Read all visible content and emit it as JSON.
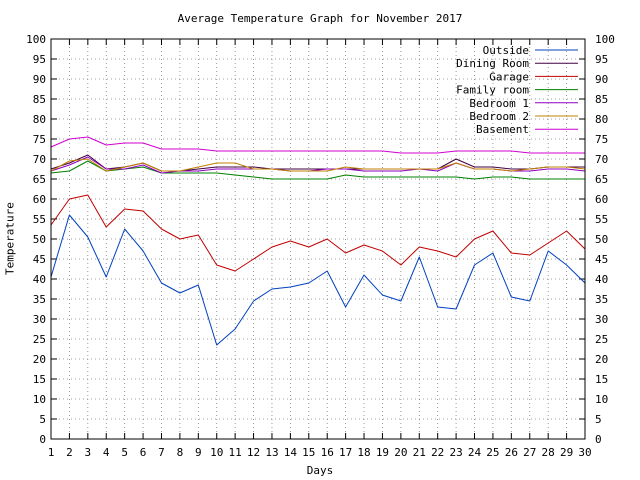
{
  "chart_data": {
    "type": "line",
    "title": "Average Temperature Graph for November 2017",
    "xlabel": "Days",
    "ylabel": "Temperature",
    "xlim": [
      1,
      30
    ],
    "ylim": [
      0,
      100
    ],
    "x": [
      1,
      2,
      3,
      4,
      5,
      6,
      7,
      8,
      9,
      10,
      11,
      12,
      13,
      14,
      15,
      16,
      17,
      18,
      19,
      20,
      21,
      22,
      23,
      24,
      25,
      26,
      27,
      28,
      29,
      30
    ],
    "x_ticks": [
      "1",
      "2",
      "3",
      "4",
      "5",
      "6",
      "7",
      "8",
      "9",
      "10",
      "11",
      "12",
      "13",
      "14",
      "15",
      "16",
      "17",
      "18",
      "19",
      "20",
      "21",
      "22",
      "23",
      "24",
      "25",
      "26",
      "27",
      "28",
      "29",
      "30"
    ],
    "y_ticks": [
      "0",
      "5",
      "10",
      "15",
      "20",
      "25",
      "30",
      "35",
      "40",
      "45",
      "50",
      "55",
      "60",
      "65",
      "70",
      "75",
      "80",
      "85",
      "90",
      "95",
      "100"
    ],
    "grid": true,
    "y_axis_mirrored_right": true,
    "legend_position": "top-right",
    "series": [
      {
        "name": "Outside",
        "color": "#0040c0",
        "values": [
          40.5,
          56,
          50.5,
          40.5,
          52.5,
          47,
          39,
          36.5,
          38.5,
          23.5,
          27.5,
          34.5,
          37.5,
          38,
          39,
          42,
          33,
          41,
          36,
          34.5,
          45.5,
          33,
          32.5,
          43.5,
          46.5,
          35.5,
          34.5,
          47,
          43.5,
          39
        ]
      },
      {
        "name": "Dining Room",
        "color": "#400040",
        "values": [
          67.5,
          69,
          71,
          67.5,
          68,
          69,
          67,
          67,
          67.5,
          68,
          68,
          68,
          67.5,
          67.5,
          67.5,
          67.5,
          67.5,
          67.5,
          67.5,
          67.5,
          67.5,
          67.5,
          70,
          68,
          68,
          67.5,
          67.5,
          68,
          68,
          68
        ]
      },
      {
        "name": "Garage",
        "color": "#c00000",
        "values": [
          53.5,
          60,
          61,
          53,
          57.5,
          57,
          52.5,
          50,
          51,
          43.5,
          42,
          45,
          48,
          49.5,
          48,
          50,
          46.5,
          48.5,
          47,
          43.5,
          48,
          47,
          45.5,
          50,
          52,
          46.5,
          46,
          49,
          52,
          47.5
        ]
      },
      {
        "name": "Family room",
        "color": "#008000",
        "values": [
          66.5,
          67,
          69.5,
          67,
          67.5,
          68,
          66.5,
          66.5,
          66.5,
          66.5,
          66,
          65.5,
          65,
          65,
          65,
          65,
          66,
          65.5,
          65.5,
          65.5,
          65.5,
          65.5,
          65.5,
          65,
          65.5,
          65.5,
          65,
          65,
          65,
          65
        ]
      },
      {
        "name": "Bedroom 1",
        "color": "#9000c0",
        "values": [
          67,
          68.5,
          70.5,
          67.5,
          67.5,
          68.5,
          66.5,
          67,
          67,
          67.5,
          67.5,
          67.5,
          67.5,
          67,
          67,
          67.5,
          67.5,
          67,
          67,
          67,
          67.5,
          67,
          69,
          67.5,
          67.5,
          67,
          67,
          67.5,
          67.5,
          67
        ]
      },
      {
        "name": "Bedroom 2",
        "color": "#c08000",
        "values": [
          67,
          69.5,
          70,
          67,
          68,
          69,
          67,
          67,
          68,
          69,
          69,
          67.5,
          67.5,
          67,
          67,
          67,
          68,
          67.5,
          67.5,
          67.5,
          67.5,
          67.5,
          69,
          67.5,
          67.5,
          67,
          67.5,
          68,
          68,
          67.5
        ]
      },
      {
        "name": "Basement",
        "color": "#d000d0",
        "values": [
          73,
          75,
          75.5,
          73.5,
          74,
          74,
          72.5,
          72.5,
          72.5,
          72,
          72,
          72,
          72,
          72,
          72,
          72,
          72,
          72,
          72,
          71.5,
          71.5,
          71.5,
          72,
          72,
          72,
          72,
          71.5,
          71.5,
          71.5,
          71.5
        ]
      }
    ]
  }
}
